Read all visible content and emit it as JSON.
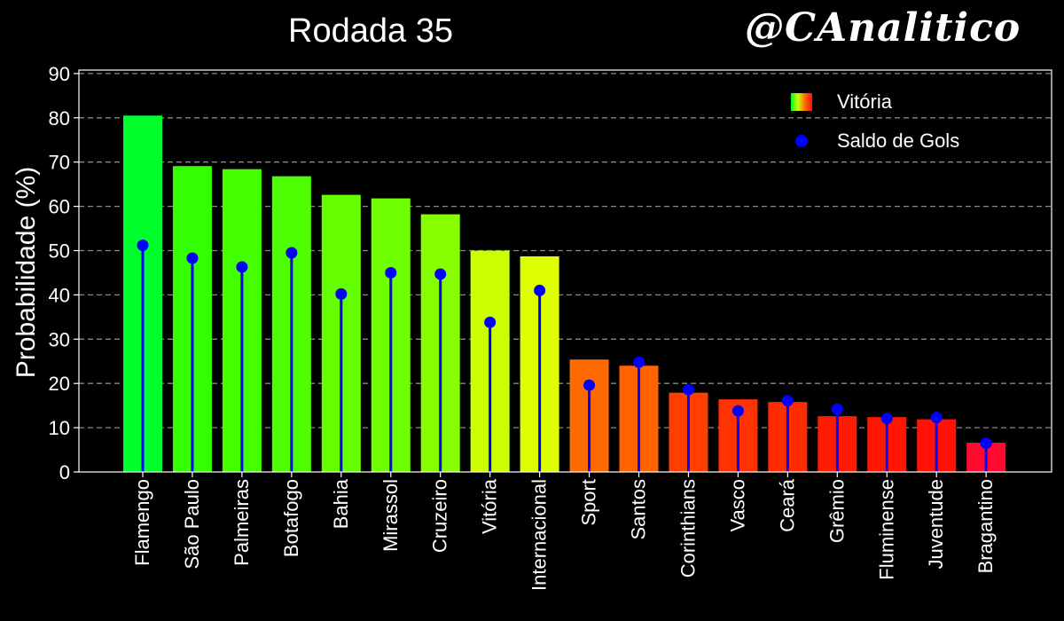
{
  "chart_data": {
    "type": "bar",
    "title": "Rodada 35",
    "ylabel": "Probabilidade (%)",
    "xlabel": "",
    "ylim": [
      0,
      90
    ],
    "yticks": [
      0,
      10,
      20,
      30,
      40,
      50,
      60,
      70,
      80,
      90
    ],
    "grid": true,
    "legend_position": "top-right",
    "categories": [
      "Flamengo",
      "São Paulo",
      "Palmeiras",
      "Botafogo",
      "Bahia",
      "Mirassol",
      "Cruzeiro",
      "Vitória",
      "Internacional",
      "Sport",
      "Santos",
      "Corinthians",
      "Vasco",
      "Ceará",
      "Grêmio",
      "Fluminense",
      "Juventude",
      "Bragantino"
    ],
    "series": [
      {
        "name": "Vitória",
        "type": "bar",
        "values": [
          80.5,
          69.1,
          68.4,
          66.8,
          62.6,
          61.8,
          58.2,
          50.0,
          48.7,
          25.4,
          24.0,
          17.9,
          16.4,
          15.8,
          12.6,
          12.4,
          11.9,
          6.6
        ],
        "colors": [
          "#00ff2b",
          "#33ff00",
          "#44ff00",
          "#4dff00",
          "#66ff00",
          "#6eff00",
          "#88ff00",
          "#ccff00",
          "#ddff00",
          "#ff6a00",
          "#ff6200",
          "#ff3e00",
          "#ff3200",
          "#ff2c00",
          "#ff1b00",
          "#ff1500",
          "#ff1205",
          "#ff0a2e"
        ]
      },
      {
        "name": "Saldo de Gols",
        "type": "stem",
        "color": "#0000ff",
        "values": [
          51.2,
          48.3,
          46.3,
          49.5,
          40.2,
          45.0,
          44.7,
          33.8,
          41.0,
          19.6,
          24.8,
          18.6,
          13.8,
          16.1,
          14.2,
          12.1,
          12.3,
          6.5
        ]
      }
    ]
  },
  "watermark": "@CAnalitico"
}
